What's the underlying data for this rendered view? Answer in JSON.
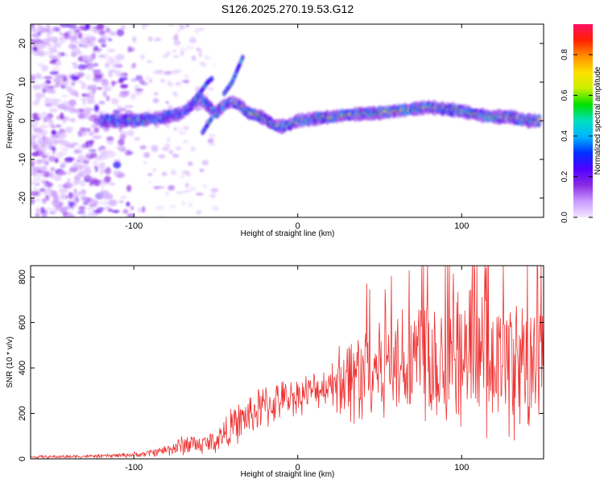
{
  "figure_title": "S126.2025.270.19.53.G12",
  "chart_data": [
    {
      "type": "heatmap",
      "name": "spectrogram",
      "xlabel": "Height of straight line (km)",
      "ylabel": "Frequency (Hz)",
      "xlim": [
        -163,
        150
      ],
      "ylim": [
        -25,
        25
      ],
      "xticks": [
        -100,
        0,
        100
      ],
      "yticks": [
        -20,
        -10,
        0,
        10,
        20
      ],
      "grid": false,
      "ridge": {
        "description": "frequency of the bright narrow-band trace vs height",
        "x": [
          -120,
          -100,
          -90,
          -80,
          -70,
          -65,
          -60,
          -55,
          -50,
          -45,
          -40,
          -35,
          -30,
          -25,
          -20,
          -15,
          -10,
          -5,
          0,
          10,
          20,
          30,
          40,
          50,
          60,
          70,
          80,
          90,
          100,
          110,
          120,
          130,
          140,
          148
        ],
        "y": [
          0,
          0,
          0.5,
          1,
          2,
          4,
          6,
          4,
          2,
          4,
          5,
          4,
          2,
          1.5,
          0.5,
          -1,
          -1.5,
          -1,
          0,
          0.5,
          1,
          1.5,
          1.8,
          2,
          2.5,
          3,
          3.5,
          3,
          2.5,
          1.5,
          1,
          1,
          0,
          0
        ]
      },
      "branches": [
        {
          "x": [
            -65,
            -60,
            -55,
            -52
          ],
          "y": [
            4,
            7,
            10,
            11
          ]
        },
        {
          "x": [
            -45,
            -40,
            -37,
            -33
          ],
          "y": [
            7,
            10,
            13,
            17
          ]
        },
        {
          "x": [
            -58,
            -55,
            -52
          ],
          "y": [
            -3,
            -1,
            1
          ]
        }
      ],
      "noise_region_x": [
        -163,
        -95
      ]
    },
    {
      "type": "colorbar",
      "name": "colorbar",
      "label": "Normalized spectral amplitude",
      "range": [
        0,
        0.95
      ],
      "ticks": [
        "0.0",
        "0.2",
        "0.4",
        "0.6",
        "0.8"
      ],
      "tick_values": [
        0,
        0.2,
        0.4,
        0.6,
        0.8
      ],
      "colormap": [
        "#f2e6ff",
        "#c99aff",
        "#8a2be2",
        "#5000ff",
        "#0030ff",
        "#00b4ff",
        "#00e0c0",
        "#00e000",
        "#c8f000",
        "#ffe000",
        "#ff9000",
        "#ff2000",
        "#ff1066"
      ]
    },
    {
      "type": "line",
      "name": "snr",
      "xlabel": "Height of straight line (km)",
      "ylabel": "SNR (10 * v/v)",
      "xlim": [
        -163,
        150
      ],
      "ylim": [
        0,
        850
      ],
      "xticks": [
        -100,
        0,
        100
      ],
      "yticks": [
        0,
        200,
        400,
        600,
        800
      ],
      "color": "#ee3333",
      "envelope": {
        "x": [
          -163,
          -120,
          -95,
          -80,
          -70,
          -65,
          -60,
          -50,
          -40,
          -30,
          -20,
          -10,
          0,
          10,
          20,
          25,
          30,
          40,
          50,
          60,
          70,
          80,
          90,
          100,
          110,
          120,
          130,
          140,
          150
        ],
        "mean": [
          8,
          12,
          20,
          40,
          60,
          70,
          60,
          80,
          140,
          190,
          230,
          260,
          280,
          300,
          330,
          350,
          360,
          380,
          420,
          430,
          450,
          470,
          440,
          460,
          430,
          410,
          420,
          400,
          420
        ],
        "amplitude": [
          6,
          8,
          12,
          25,
          45,
          50,
          40,
          55,
          80,
          90,
          100,
          80,
          80,
          80,
          80,
          150,
          200,
          220,
          230,
          240,
          300,
          320,
          300,
          300,
          300,
          300,
          300,
          300,
          300
        ]
      }
    }
  ]
}
